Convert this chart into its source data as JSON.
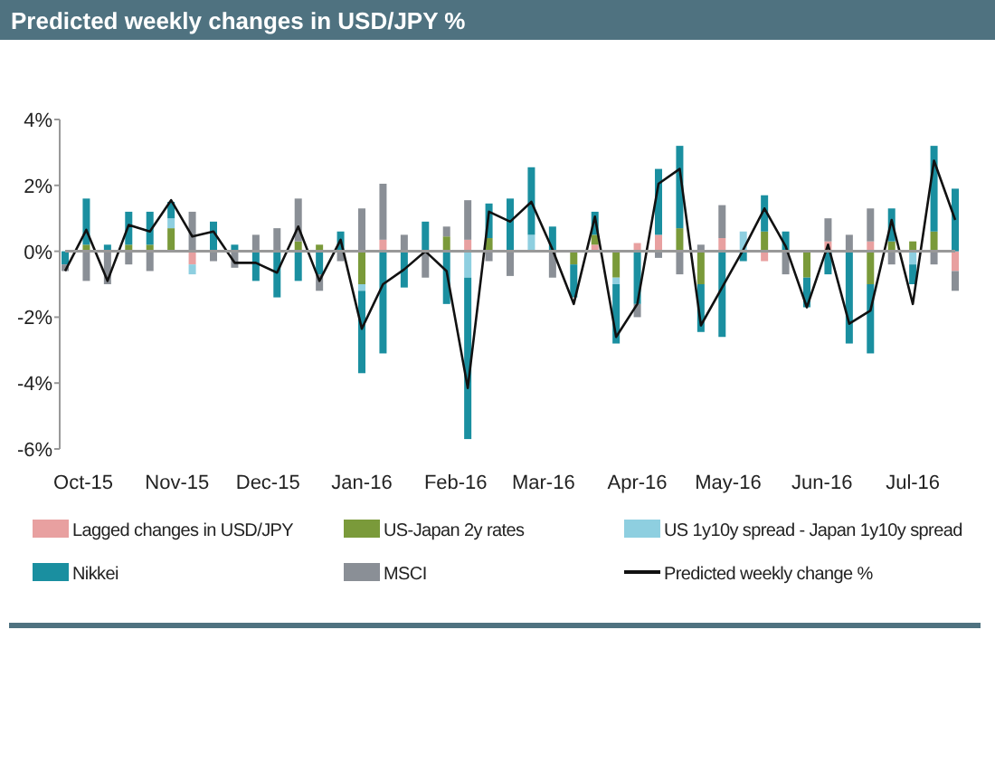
{
  "chart_data": {
    "type": "bar",
    "stacked": true,
    "title": "Predicted weekly changes in USD/JPY %",
    "x": [
      "2015-09-25",
      "2015-10-02",
      "2015-10-09",
      "2015-10-16",
      "2015-10-23",
      "2015-10-30",
      "2015-11-06",
      "2015-11-13",
      "2015-11-20",
      "2015-11-27",
      "2015-12-04",
      "2015-12-11",
      "2015-12-18",
      "2015-12-25",
      "2016-01-01",
      "2016-01-08",
      "2016-01-15",
      "2016-01-22",
      "2016-01-29",
      "2016-02-05",
      "2016-02-12",
      "2016-02-19",
      "2016-02-26",
      "2016-03-04",
      "2016-03-11",
      "2016-03-18",
      "2016-03-25",
      "2016-04-01",
      "2016-04-08",
      "2016-04-15",
      "2016-04-22",
      "2016-04-29",
      "2016-05-06",
      "2016-05-13",
      "2016-05-20",
      "2016-05-27",
      "2016-06-03",
      "2016-06-10",
      "2016-06-17",
      "2016-06-24",
      "2016-07-01",
      "2016-07-08",
      "2016-07-15"
    ],
    "xlim": [
      "2015-09-25",
      "2016-07-15"
    ],
    "xticks": [
      {
        "value": "2015-10-01",
        "label": "Oct-15"
      },
      {
        "value": "2015-11-01",
        "label": "Nov-15"
      },
      {
        "value": "2015-12-01",
        "label": "Dec-15"
      },
      {
        "value": "2016-01-01",
        "label": "Jan-16"
      },
      {
        "value": "2016-02-01",
        "label": "Feb-16"
      },
      {
        "value": "2016-03-01",
        "label": "Mar-16"
      },
      {
        "value": "2016-04-01",
        "label": "Apr-16"
      },
      {
        "value": "2016-05-01",
        "label": "May-16"
      },
      {
        "value": "2016-06-01",
        "label": "Jun-16"
      },
      {
        "value": "2016-07-01",
        "label": "Jul-16"
      }
    ],
    "ylim": [
      -6,
      4
    ],
    "yticks": [
      {
        "value": -6,
        "label": "-6%"
      },
      {
        "value": -4,
        "label": "-4%"
      },
      {
        "value": -2,
        "label": "-2%"
      },
      {
        "value": 0,
        "label": "0%"
      },
      {
        "value": 2,
        "label": "2%"
      },
      {
        "value": 4,
        "label": "4%"
      }
    ],
    "legend": "bottom",
    "series": [
      {
        "name": "Lagged changes in USD/JPY",
        "color": "#e8a0a0",
        "values": [
          0,
          0,
          0,
          0,
          0,
          0,
          -0.4,
          0,
          0,
          0,
          0,
          0,
          0,
          0,
          0,
          0.35,
          0,
          0,
          0,
          0.35,
          0,
          0,
          0,
          0,
          0,
          0.2,
          0,
          0.25,
          0.5,
          0,
          0,
          0.4,
          0,
          -0.3,
          0,
          0,
          0.3,
          0,
          0.3,
          0,
          0,
          0,
          -0.6
        ]
      },
      {
        "name": "US-Japan 2y rates",
        "color": "#7a9a3a",
        "values": [
          0,
          0.2,
          0,
          0.2,
          0.2,
          0.7,
          0,
          0,
          0,
          0,
          0,
          0.3,
          0.2,
          0,
          -1.0,
          0,
          0,
          0,
          0.45,
          0,
          0.4,
          0,
          0,
          0,
          -0.4,
          0.3,
          -0.8,
          0,
          0,
          0.7,
          -1.0,
          0,
          0,
          0.6,
          0,
          -0.8,
          0,
          0,
          -1.0,
          0.3,
          0.3,
          0.6,
          0
        ]
      },
      {
        "name": "US 1y10y spread - Japan 1y10y spread",
        "color": "#8ecfe0",
        "values": [
          0,
          0,
          0,
          0,
          0,
          0.3,
          -0.3,
          0,
          0,
          0,
          0,
          0,
          0,
          0,
          -0.2,
          0,
          0,
          0,
          0,
          -0.8,
          0,
          0,
          0.5,
          0,
          0,
          0,
          -0.2,
          0,
          0,
          0,
          0,
          0,
          0.6,
          0,
          0,
          0,
          0,
          0,
          0,
          0,
          -0.4,
          0,
          0
        ]
      },
      {
        "name": "Nikkei",
        "color": "#1a8fa0",
        "values": [
          -0.4,
          1.4,
          0.2,
          1.0,
          1.0,
          0.5,
          0,
          0.9,
          0.2,
          -0.9,
          -1.4,
          -0.9,
          -0.7,
          0.6,
          -2.5,
          -3.1,
          -1.1,
          0.9,
          -1.6,
          -4.9,
          1.05,
          1.6,
          2.05,
          0.75,
          -1.0,
          0.7,
          -1.8,
          -1.6,
          2.0,
          2.5,
          -1.45,
          -2.6,
          -0.3,
          1.1,
          0.6,
          -0.9,
          -0.7,
          -2.8,
          -2.1,
          1.0,
          -0.6,
          2.6,
          1.9
        ]
      },
      {
        "name": "MSCI",
        "color": "#8a8f96",
        "values": [
          -0.2,
          -0.9,
          -1.0,
          -0.4,
          -0.6,
          0,
          1.2,
          -0.3,
          -0.5,
          0.5,
          0.7,
          1.3,
          -0.5,
          -0.3,
          1.3,
          1.7,
          0.5,
          -0.8,
          0.3,
          1.2,
          -0.3,
          -0.75,
          0,
          -0.8,
          0,
          0,
          0,
          -0.4,
          -0.2,
          -0.7,
          0.2,
          1.0,
          0,
          0,
          -0.7,
          0,
          0.7,
          0.5,
          1.0,
          -0.4,
          0,
          -0.4,
          -0.6
        ]
      },
      {
        "name": "Predicted weekly change %",
        "type": "line",
        "color": "#111111",
        "values": [
          -0.6,
          0.65,
          -0.9,
          0.8,
          0.6,
          1.55,
          0.45,
          0.6,
          -0.35,
          -0.35,
          -0.65,
          0.75,
          -0.9,
          0.35,
          -2.35,
          -1.0,
          -0.55,
          0.0,
          -0.6,
          -4.15,
          1.2,
          0.9,
          1.5,
          0.05,
          -1.6,
          1.05,
          -2.6,
          -1.6,
          2.05,
          2.5,
          -2.25,
          -1.1,
          0.05,
          1.3,
          0.15,
          -1.7,
          0.2,
          -2.2,
          -1.8,
          0.95,
          -1.6,
          2.75,
          0.95
        ]
      }
    ]
  }
}
